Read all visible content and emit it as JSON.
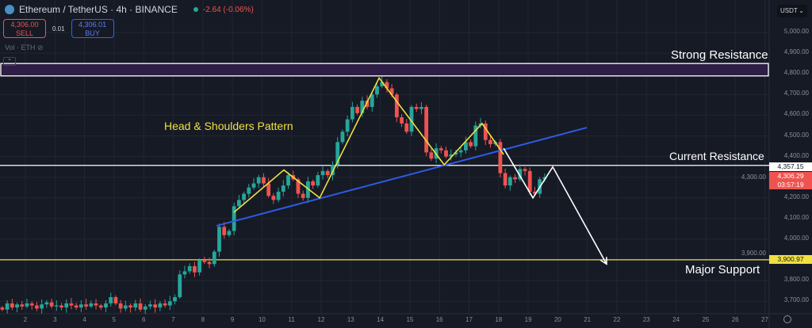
{
  "header": {
    "symbol": "Ethereum / TetherUS · 4h · BINANCE",
    "change": "-2.64 (-0.06%)",
    "sell_price": "4,306.00",
    "sell_label": "SELL",
    "spread": "0.01",
    "buy_price": "4,306.01",
    "buy_label": "BUY",
    "volume_label": "Vol · ETH",
    "currency": "USDT"
  },
  "colors": {
    "up": "#26a69a",
    "down": "#ef5350",
    "pattern": "#f0e040",
    "trend": "#2e5be6",
    "projection": "#ffffff",
    "zone": "#2e1d44"
  },
  "annotations": {
    "strong_resistance": "Strong Resistance",
    "pattern": "Head & Shoulders Pattern",
    "current_resistance": "Current Resistance",
    "major_support": "Major Support"
  },
  "price_tags": {
    "resistance": "4,357.15",
    "last": "4,306.29",
    "countdown": "03:57:19",
    "support": "3,900.97"
  },
  "chart_data": {
    "type": "candlestick",
    "y_ticks": [
      "5,000.00",
      "4,900.00",
      "4,800.00",
      "4,700.00",
      "4,600.00",
      "4,500.00",
      "4,400.00",
      "4,300.00",
      "4,200.00",
      "4,100.00",
      "4,000.00",
      "3,900.00",
      "3,800.00",
      "3,700.00"
    ],
    "x_ticks": [
      "2",
      "3",
      "4",
      "5",
      "6",
      "7",
      "8",
      "9",
      "10",
      "11",
      "12",
      "13",
      "14",
      "15",
      "16",
      "17",
      "18",
      "19",
      "20",
      "21",
      "22",
      "23",
      "24",
      "25",
      "26",
      "27"
    ],
    "ylim": [
      3650,
      5030
    ],
    "start_day": 1.22,
    "candle_step_day": 0.1667,
    "first_open": 3670,
    "closes": [
      3660,
      3690,
      3670,
      3685,
      3675,
      3690,
      3680,
      3665,
      3685,
      3695,
      3675,
      3680,
      3670,
      3690,
      3680,
      3670,
      3685,
      3675,
      3690,
      3680,
      3670,
      3690,
      3720,
      3690,
      3665,
      3680,
      3670,
      3690,
      3660,
      3675,
      3685,
      3670,
      3690,
      3680,
      3700,
      3720,
      3830,
      3845,
      3870,
      3840,
      3900,
      3890,
      3880,
      3940,
      4060,
      4020,
      4040,
      4160,
      4190,
      4220,
      4250,
      4270,
      4300,
      4270,
      4210,
      4190,
      4230,
      4260,
      4310,
      4290,
      4220,
      4200,
      4280,
      4260,
      4310,
      4330,
      4310,
      4360,
      4470,
      4520,
      4580,
      4640,
      4610,
      4670,
      4640,
      4700,
      4740,
      4760,
      4730,
      4700,
      4590,
      4560,
      4520,
      4640,
      4630,
      4640,
      4420,
      4390,
      4440,
      4430,
      4400,
      4410,
      4420,
      4430,
      4470,
      4450,
      4550,
      4560,
      4480,
      4460,
      4470,
      4320,
      4260,
      4300,
      4290,
      4340,
      4330,
      4230,
      4220,
      4290,
      4300
    ],
    "levels": {
      "strong_resistance_zone": [
        4790,
        4850
      ],
      "current_resistance": 4357.15,
      "major_support": 3900.97
    },
    "pattern_line": [
      [
        9.05,
        4130
      ],
      [
        10.74,
        4335
      ],
      [
        11.95,
        4200
      ],
      [
        13.96,
        4780
      ],
      [
        16.16,
        4360
      ],
      [
        17.44,
        4560
      ],
      [
        18.17,
        4410
      ]
    ],
    "trend_line": [
      [
        8.46,
        4065
      ],
      [
        20.98,
        4540
      ]
    ],
    "projection_line": [
      [
        18.17,
        4440
      ],
      [
        19.16,
        4200
      ],
      [
        19.83,
        4350
      ],
      [
        21.65,
        3880
      ]
    ]
  }
}
